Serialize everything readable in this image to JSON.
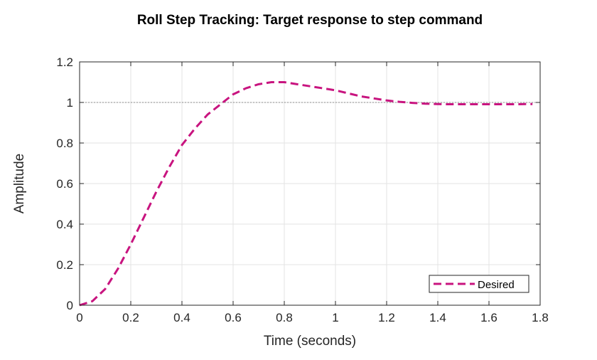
{
  "chart_data": {
    "type": "line",
    "title": "Roll Step Tracking: Target response to step command",
    "xlabel": "Time (seconds)",
    "ylabel": "Amplitude",
    "xlim": [
      0,
      1.8
    ],
    "ylim": [
      0,
      1.2
    ],
    "xticks": [
      0,
      0.2,
      0.4,
      0.6,
      0.8,
      1,
      1.2,
      1.4,
      1.6,
      1.8
    ],
    "xtick_labels": [
      "0",
      "0.2",
      "0.4",
      "0.6",
      "0.8",
      "1",
      "1.2",
      "1.4",
      "1.6",
      "1.8"
    ],
    "yticks": [
      0,
      0.2,
      0.4,
      0.6,
      0.8,
      1,
      1.2
    ],
    "ytick_labels": [
      "0",
      "0.2",
      "0.4",
      "0.6",
      "0.8",
      "1",
      "1.2"
    ],
    "grid": true,
    "legend_position": "bottom-right",
    "reference_line": {
      "y": 1,
      "style": "dotted",
      "color": "#8c8c8c"
    },
    "series": [
      {
        "name": "Desired",
        "style": "dashed",
        "color": "#c8147f",
        "x": [
          0,
          0.05,
          0.1,
          0.15,
          0.2,
          0.25,
          0.3,
          0.35,
          0.4,
          0.45,
          0.5,
          0.55,
          0.6,
          0.65,
          0.7,
          0.75,
          0.8,
          0.85,
          0.9,
          0.95,
          1.0,
          1.05,
          1.1,
          1.15,
          1.2,
          1.25,
          1.3,
          1.35,
          1.4,
          1.45,
          1.5,
          1.55,
          1.6,
          1.65,
          1.7,
          1.75,
          1.77
        ],
        "y": [
          0,
          0.02,
          0.08,
          0.18,
          0.3,
          0.43,
          0.56,
          0.68,
          0.79,
          0.87,
          0.94,
          0.99,
          1.04,
          1.07,
          1.09,
          1.1,
          1.1,
          1.09,
          1.08,
          1.07,
          1.06,
          1.045,
          1.03,
          1.02,
          1.01,
          1.003,
          0.998,
          0.994,
          0.992,
          0.991,
          0.991,
          0.991,
          0.991,
          0.991,
          0.991,
          0.992,
          0.992
        ]
      }
    ]
  }
}
